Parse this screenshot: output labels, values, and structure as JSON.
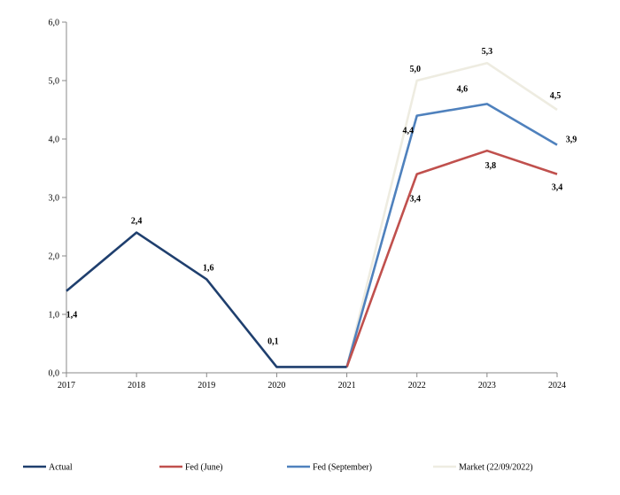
{
  "chart_data": {
    "type": "line",
    "categories": [
      "2017",
      "2018",
      "2019",
      "2020",
      "2021",
      "2022",
      "2023",
      "2024"
    ],
    "ylim": [
      0,
      6
    ],
    "yticks": [
      "0,0",
      "1,0",
      "2,0",
      "3,0",
      "4,0",
      "5,0",
      "6,0"
    ],
    "grid": false,
    "legend_position": "bottom",
    "series": [
      {
        "name": "Actual",
        "color": "#1f3f6e",
        "values": [
          1.4,
          2.4,
          1.6,
          0.1,
          0.1,
          null,
          null,
          null
        ],
        "labels": [
          "1,4",
          "2,4",
          "1,6",
          "0,1",
          "",
          "",
          "",
          ""
        ]
      },
      {
        "name": "Fed (June)",
        "color": "#c0504d",
        "values": [
          null,
          null,
          null,
          null,
          0.1,
          3.4,
          3.8,
          3.4
        ],
        "labels": [
          "",
          "",
          "",
          "",
          "",
          "3,4",
          "3,8",
          "3,4"
        ]
      },
      {
        "name": "Fed (September)",
        "color": "#4f81bd",
        "values": [
          null,
          null,
          null,
          null,
          0.1,
          4.4,
          4.6,
          3.9
        ],
        "labels": [
          "",
          "",
          "",
          "",
          "",
          "4,4",
          "4,6",
          "3,9"
        ]
      },
      {
        "name": "Market (22/09/2022)",
        "color": "#eeece1",
        "values": [
          null,
          null,
          null,
          null,
          0.1,
          5.0,
          5.3,
          4.5
        ],
        "labels": [
          "",
          "",
          "",
          "",
          "",
          "5,0",
          "5,3",
          "4,5"
        ]
      }
    ]
  }
}
